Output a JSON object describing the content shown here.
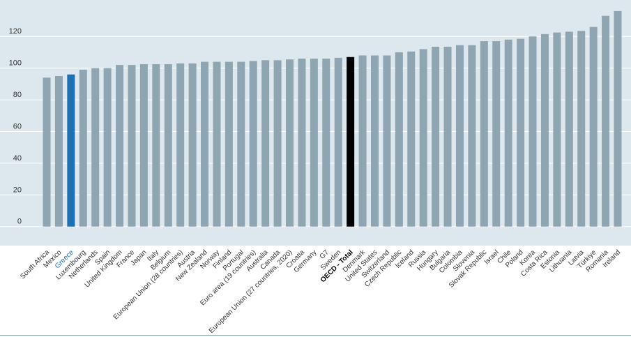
{
  "chart_data": {
    "type": "bar",
    "title": "",
    "xlabel": "",
    "ylabel": "",
    "ylim": [
      -12,
      143
    ],
    "yticks": [
      0,
      20,
      40,
      60,
      80,
      100,
      120
    ],
    "grid": true,
    "colors": {
      "background": "#dce8ee",
      "bar": "#8fa5b2",
      "highlight": "#1f6fb4",
      "total": "#000000",
      "grid": "#ffffff"
    },
    "categories": [
      "South Africa",
      "Mexico",
      "Greece",
      "Luxembourg",
      "Netherlands",
      "Spain",
      "United Kingdom",
      "France",
      "Japan",
      "Italy",
      "Belgium",
      "European Union (28 countries)",
      "Austria",
      "New Zealand",
      "Norway",
      "Finland",
      "Portugal",
      "Euro area (19 countries)",
      "Australia",
      "Canada",
      "European Union (27 countries, 2020)",
      "Croatia",
      "Germany",
      "G7",
      "Sweden",
      "OECD - Total",
      "Denmark",
      "United States",
      "Switzerland",
      "Czech Republic",
      "Iceland",
      "Russia",
      "Hungary",
      "Bulgaria",
      "Colombia",
      "Slovenia",
      "Slovak Republic",
      "Israel",
      "Chile",
      "Poland",
      "Korea",
      "Costa Rica",
      "Estonia",
      "Lithuania",
      "Latvia",
      "Türkiye",
      "Romania",
      "Ireland"
    ],
    "values": [
      94,
      95,
      96,
      99,
      100,
      100,
      102,
      102,
      102.5,
      102.5,
      102.5,
      103,
      103,
      104,
      104,
      104,
      104,
      104.5,
      105,
      105,
      105.5,
      106,
      106,
      106,
      106.5,
      107,
      108,
      108,
      108,
      110,
      110.5,
      112,
      113.5,
      113.5,
      114.5,
      114.5,
      117,
      117,
      118,
      118.5,
      120,
      121.5,
      122.5,
      123,
      123.5,
      126,
      133,
      136
    ],
    "highlight": [
      "Greece"
    ],
    "total": [
      "OECD - Total"
    ]
  }
}
